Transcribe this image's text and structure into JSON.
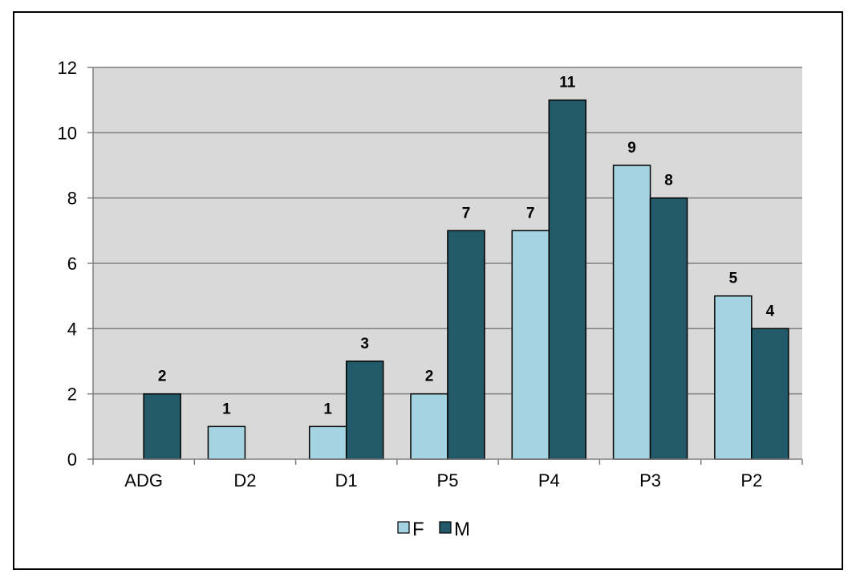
{
  "chart_data": {
    "type": "bar",
    "title": "",
    "xlabel": "",
    "ylabel": "",
    "categories": [
      "ADG",
      "D2",
      "D1",
      "P5",
      "P4",
      "P3",
      "P2"
    ],
    "series": [
      {
        "name": "F",
        "values": [
          null,
          1,
          1,
          2,
          7,
          9,
          5
        ],
        "color": "#a4d4e2"
      },
      {
        "name": "M",
        "values": [
          2,
          null,
          3,
          7,
          11,
          8,
          4
        ],
        "color": "#235a69"
      }
    ],
    "ylim": [
      0,
      12
    ],
    "yticks": [
      0,
      2,
      4,
      6,
      8,
      10,
      12
    ],
    "grid": true,
    "plot_background": "#d9d9d9",
    "gridline_color": "#7f7f7f",
    "legend_position": "bottom-center"
  }
}
